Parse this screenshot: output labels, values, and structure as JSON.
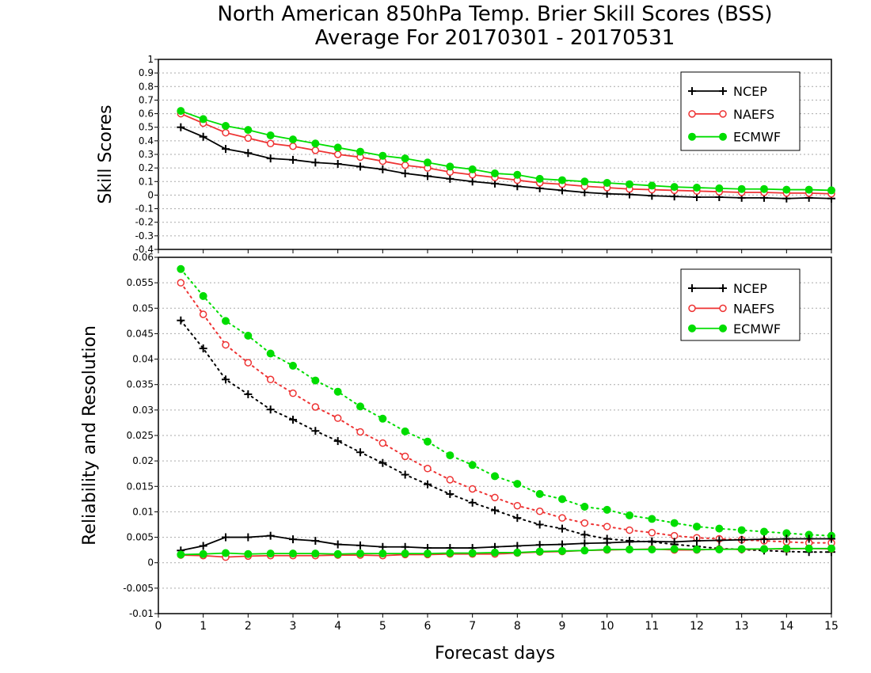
{
  "title_line1": "North American 850hPa Temp. Brier Skill Scores (BSS)",
  "title_line2": "Average For 20170301 - 20170531",
  "colors": {
    "NCEP": "#000000",
    "NAEFS": "#ee3333",
    "ECMWF": "#00dd00"
  },
  "chart_data": [
    {
      "type": "line",
      "ylabel": "Skill Scores",
      "xlabel": "",
      "xlim": [
        0,
        15
      ],
      "ylim": [
        -0.4,
        1
      ],
      "yticks": [
        "-0.4",
        "-0.3",
        "-0.2",
        "-0.1",
        "0",
        "0.1",
        "0.2",
        "0.3",
        "0.4",
        "0.5",
        "0.6",
        "0.7",
        "0.8",
        "0.9",
        "1"
      ],
      "grid": "horizontal dotted",
      "legend": {
        "placement": "top-right",
        "entries": [
          "NCEP",
          "NAEFS",
          "ECMWF"
        ]
      },
      "x": [
        0.5,
        1,
        1.5,
        2,
        2.5,
        3,
        3.5,
        4,
        4.5,
        5,
        5.5,
        6,
        6.5,
        7,
        7.5,
        8,
        8.5,
        9,
        9.5,
        10,
        10.5,
        11,
        11.5,
        12,
        12.5,
        13,
        13.5,
        14,
        14.5,
        15
      ],
      "series": [
        {
          "name": "NCEP",
          "marker": "plus",
          "line": "solid",
          "values": [
            0.5,
            0.43,
            0.34,
            0.31,
            0.27,
            0.26,
            0.24,
            0.23,
            0.21,
            0.19,
            0.16,
            0.14,
            0.12,
            0.1,
            0.085,
            0.065,
            0.05,
            0.035,
            0.02,
            0.01,
            0.005,
            -0.005,
            -0.01,
            -0.015,
            -0.015,
            -0.02,
            -0.02,
            -0.025,
            -0.02,
            -0.025
          ]
        },
        {
          "name": "NAEFS",
          "marker": "open-circle",
          "line": "solid",
          "values": [
            0.6,
            0.53,
            0.46,
            0.42,
            0.38,
            0.36,
            0.33,
            0.3,
            0.28,
            0.25,
            0.22,
            0.2,
            0.17,
            0.15,
            0.13,
            0.11,
            0.09,
            0.08,
            0.065,
            0.055,
            0.045,
            0.04,
            0.035,
            0.03,
            0.025,
            0.02,
            0.02,
            0.015,
            0.015,
            0.01
          ]
        },
        {
          "name": "ECMWF",
          "marker": "filled-circle",
          "line": "solid",
          "values": [
            0.62,
            0.56,
            0.51,
            0.48,
            0.44,
            0.41,
            0.38,
            0.35,
            0.32,
            0.29,
            0.27,
            0.24,
            0.21,
            0.19,
            0.16,
            0.15,
            0.12,
            0.11,
            0.1,
            0.09,
            0.08,
            0.07,
            0.06,
            0.055,
            0.05,
            0.045,
            0.045,
            0.04,
            0.04,
            0.035
          ]
        }
      ]
    },
    {
      "type": "line",
      "ylabel": "Reliability and Resolution",
      "xlabel": "Forecast days",
      "xlim": [
        0,
        15
      ],
      "ylim": [
        -0.01,
        0.06
      ],
      "yticks": [
        "-0.01",
        "-0.005",
        "0",
        "0.005",
        "0.01",
        "0.015",
        "0.02",
        "0.025",
        "0.03",
        "0.035",
        "0.04",
        "0.045",
        "0.05",
        "0.055",
        "0.06"
      ],
      "xticks": [
        "0",
        "1",
        "2",
        "3",
        "4",
        "5",
        "6",
        "7",
        "8",
        "9",
        "10",
        "11",
        "12",
        "13",
        "14",
        "15"
      ],
      "grid": "horizontal dotted",
      "legend": {
        "placement": "top-right",
        "entries": [
          "NCEP",
          "NAEFS",
          "ECMWF"
        ]
      },
      "x": [
        0.5,
        1,
        1.5,
        2,
        2.5,
        3,
        3.5,
        4,
        4.5,
        5,
        5.5,
        6,
        6.5,
        7,
        7.5,
        8,
        8.5,
        9,
        9.5,
        10,
        10.5,
        11,
        11.5,
        12,
        12.5,
        13,
        13.5,
        14,
        14.5,
        15
      ],
      "series": [
        {
          "name": "NCEP",
          "kind": "resolution",
          "marker": "plus",
          "line": "dotted",
          "values": [
            0.0476,
            0.0421,
            0.036,
            0.0331,
            0.0301,
            0.0281,
            0.0259,
            0.0239,
            0.0217,
            0.0196,
            0.0173,
            0.0154,
            0.0135,
            0.0118,
            0.0103,
            0.0088,
            0.0075,
            0.0067,
            0.0055,
            0.0047,
            0.0043,
            0.0041,
            0.0036,
            0.0032,
            0.0028,
            0.0026,
            0.0024,
            0.0022,
            0.0021,
            0.0021
          ]
        },
        {
          "name": "NAEFS",
          "kind": "resolution",
          "marker": "open-circle",
          "line": "dotted",
          "values": [
            0.055,
            0.0488,
            0.0428,
            0.0393,
            0.036,
            0.0333,
            0.0306,
            0.0284,
            0.0257,
            0.0235,
            0.0209,
            0.0185,
            0.0163,
            0.0145,
            0.0128,
            0.0112,
            0.0101,
            0.0088,
            0.0078,
            0.0071,
            0.0064,
            0.0059,
            0.0053,
            0.0049,
            0.0047,
            0.0045,
            0.0043,
            0.0041,
            0.0039,
            0.0039
          ]
        },
        {
          "name": "ECMWF",
          "kind": "resolution",
          "marker": "filled-circle",
          "line": "dotted",
          "values": [
            0.0577,
            0.0524,
            0.0475,
            0.0446,
            0.0411,
            0.0387,
            0.0358,
            0.0336,
            0.0307,
            0.0283,
            0.0258,
            0.0238,
            0.0211,
            0.0192,
            0.017,
            0.0155,
            0.0135,
            0.0125,
            0.011,
            0.0104,
            0.0093,
            0.0086,
            0.0078,
            0.0071,
            0.0067,
            0.0064,
            0.0061,
            0.0058,
            0.0055,
            0.0053
          ]
        },
        {
          "name": "NCEP",
          "kind": "reliability",
          "marker": "plus",
          "line": "solid",
          "values": [
            0.0024,
            0.0033,
            0.005,
            0.005,
            0.0053,
            0.0046,
            0.0043,
            0.0036,
            0.0034,
            0.0031,
            0.0031,
            0.0029,
            0.0029,
            0.0029,
            0.0031,
            0.0033,
            0.0035,
            0.0036,
            0.0038,
            0.0039,
            0.0041,
            0.0042,
            0.0041,
            0.0043,
            0.0044,
            0.0045,
            0.0046,
            0.0047,
            0.0047,
            0.0047
          ]
        },
        {
          "name": "NAEFS",
          "kind": "reliability",
          "marker": "open-circle",
          "line": "solid",
          "values": [
            0.0015,
            0.0014,
            0.0011,
            0.0013,
            0.0014,
            0.0014,
            0.0014,
            0.0015,
            0.0015,
            0.0014,
            0.0016,
            0.0016,
            0.0017,
            0.0017,
            0.0017,
            0.0019,
            0.0021,
            0.0022,
            0.0024,
            0.0025,
            0.0026,
            0.0027,
            0.0025,
            0.0025,
            0.0027,
            0.0026,
            0.0027,
            0.0027,
            0.0028,
            0.0027
          ]
        },
        {
          "name": "ECMWF",
          "kind": "reliability",
          "marker": "filled-circle",
          "line": "solid",
          "values": [
            0.0016,
            0.0017,
            0.0019,
            0.0017,
            0.0018,
            0.0018,
            0.0018,
            0.0017,
            0.0018,
            0.0018,
            0.0018,
            0.0018,
            0.0019,
            0.0019,
            0.002,
            0.002,
            0.0022,
            0.0023,
            0.0024,
            0.0026,
            0.0026,
            0.0026,
            0.0027,
            0.0026,
            0.0026,
            0.0027,
            0.0027,
            0.0028,
            0.0028,
            0.0028
          ]
        }
      ]
    }
  ]
}
